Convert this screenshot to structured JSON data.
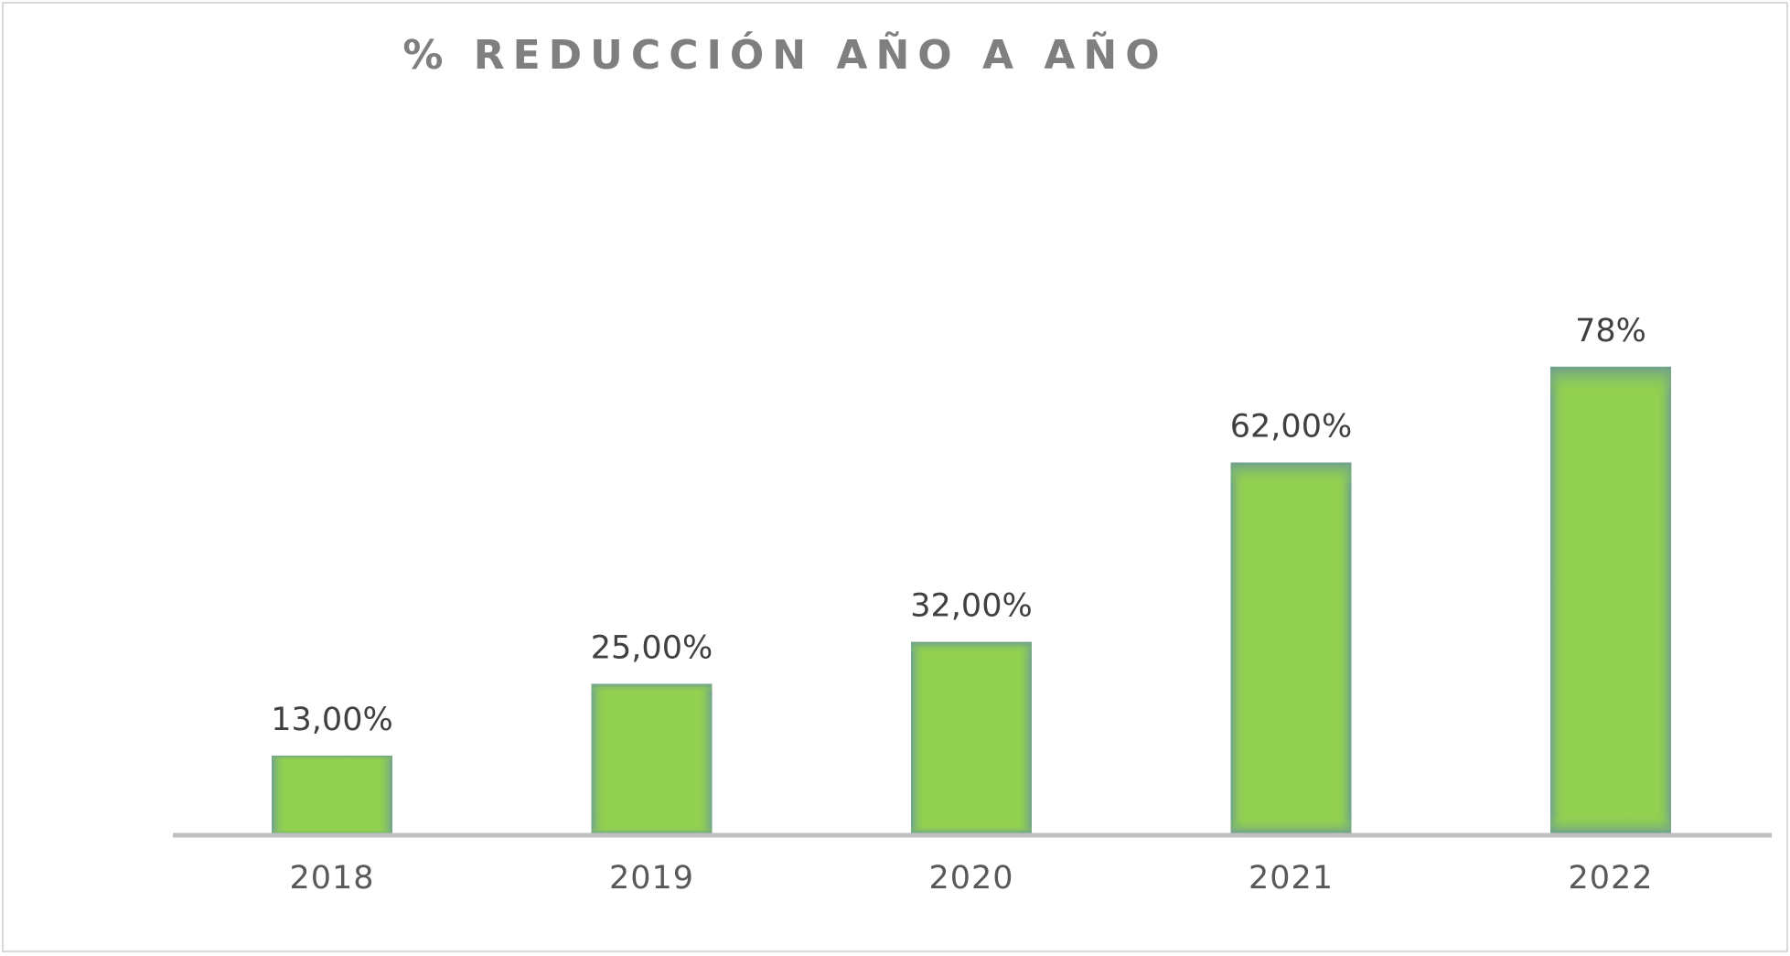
{
  "chart_data": {
    "type": "bar",
    "title": "% REDUCCIÓN AÑO A AÑO",
    "xlabel": "",
    "ylabel": "",
    "categories": [
      "2018",
      "2019",
      "2020",
      "2021",
      "2022"
    ],
    "values": [
      13,
      25,
      32,
      62,
      78
    ],
    "data_labels": [
      "13,00%",
      "25,00%",
      "32,00%",
      "62,00%",
      "78%"
    ],
    "ylim": [
      0,
      100
    ],
    "grid": false,
    "legend": "none",
    "colors": {
      "bar_fill": "#92d050",
      "bar_edge": "#6fa08f",
      "axis": "#bfbfbf",
      "title": "#7f7f7f",
      "label": "#404040"
    }
  }
}
